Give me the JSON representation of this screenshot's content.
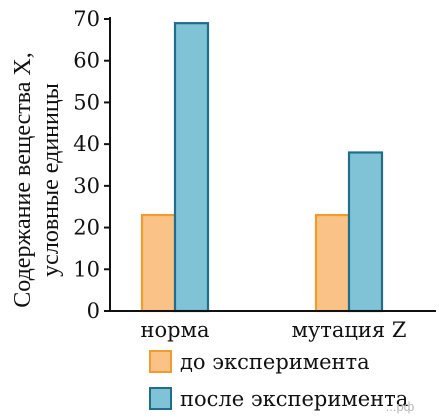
{
  "chart_data": {
    "type": "bar",
    "categories": [
      "норма",
      "мутация Z"
    ],
    "series": [
      {
        "name": "до эксперимента",
        "values": [
          23,
          23
        ],
        "fill": "#fbc287",
        "stroke": "#f39b2c"
      },
      {
        "name": "после эксперимента",
        "values": [
          69,
          38
        ],
        "fill": "#80c3d6",
        "stroke": "#1f6e8e"
      }
    ],
    "ylabel": [
      "Содержание вещества X,",
      "условные единицы"
    ],
    "xlabel": "",
    "ylim": [
      0,
      70
    ],
    "yticks": [
      0,
      10,
      20,
      30,
      40,
      50,
      60,
      70
    ],
    "grid": false,
    "legend": "bottom"
  },
  "watermark": "...рф"
}
